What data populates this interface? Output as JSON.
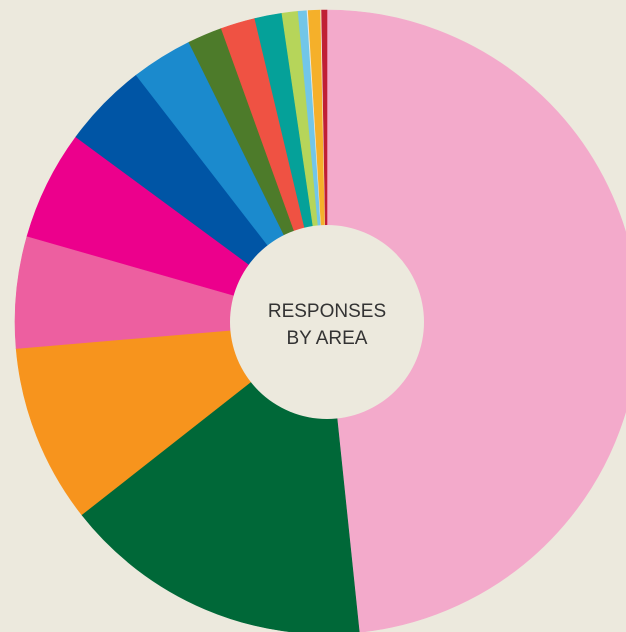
{
  "chart_data": {
    "type": "pie",
    "variant": "donut",
    "center_label_lines": [
      "RESPONSES",
      "BY AREA"
    ],
    "legend": "none",
    "start_angle_deg": 0,
    "direction": "clockwise",
    "unit": "percent",
    "slices": [
      {
        "value": 48.76,
        "color": "#f3aacb"
      },
      {
        "value": 16.19,
        "color": "#006838"
      },
      {
        "value": 9.32,
        "color": "#f7941d"
      },
      {
        "value": 5.84,
        "color": "#ed5fa0"
      },
      {
        "value": 5.72,
        "color": "#ec008c"
      },
      {
        "value": 4.46,
        "color": "#0055a5"
      },
      {
        "value": 3.2,
        "color": "#1b8acd"
      },
      {
        "value": 1.81,
        "color": "#4d7b2a"
      },
      {
        "value": 1.8,
        "color": "#ef5243"
      },
      {
        "value": 1.42,
        "color": "#05a199"
      },
      {
        "value": 0.84,
        "color": "#b6d55a"
      },
      {
        "value": 0.46,
        "color": "#72c6e8"
      },
      {
        "value": 0.06,
        "color": "#ece9dd"
      },
      {
        "value": 0.64,
        "color": "#f5b02a"
      },
      {
        "value": 0.05,
        "color": "#ece9dd"
      },
      {
        "value": 0.28,
        "color": "#c01f35"
      }
    ]
  }
}
